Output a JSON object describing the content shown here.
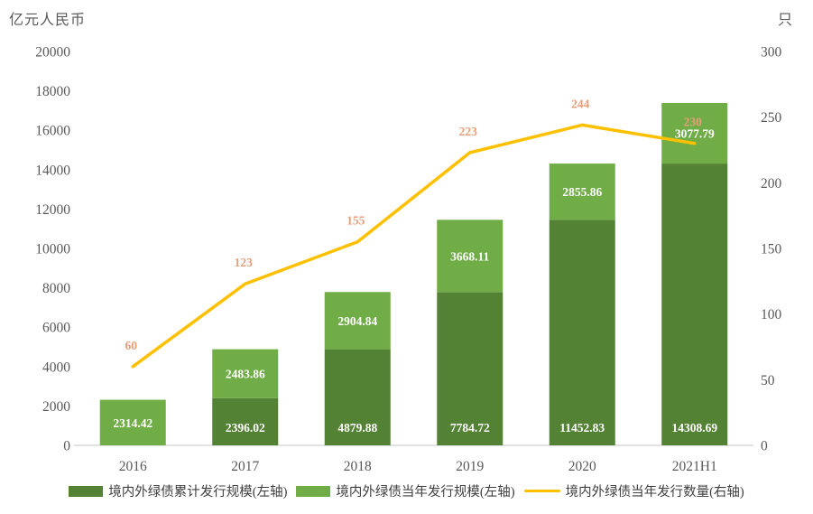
{
  "page": {
    "left_axis_title": "亿元人民币",
    "right_axis_title": "只"
  },
  "colors": {
    "dark_green": "#548235",
    "light_green": "#70AD47",
    "line_yellow": "#FFC000",
    "line_label": "#EA9E78",
    "bar_label": "#FFFFFF",
    "axis_text": "#595959",
    "axis_line": "#D9D9D9"
  },
  "legend": [
    {
      "label": "境内外绿债累计发行规模(左轴)",
      "swatch": "dark_green",
      "shape": "box"
    },
    {
      "label": "境内外绿债当年发行规模(左轴)",
      "swatch": "light_green",
      "shape": "box"
    },
    {
      "label": "境内外绿债当年发行数量(右轴)",
      "swatch": "line_yellow",
      "shape": "line"
    }
  ],
  "chart_data": {
    "type": "bar",
    "subtype": "stacked-bars-with-line-combo",
    "title": "",
    "categories": [
      "2016",
      "2017",
      "2018",
      "2019",
      "2020",
      "2021H1"
    ],
    "series": [
      {
        "name": "境内外绿债累计发行规模(左轴)",
        "type": "bar",
        "axis": "left",
        "color_key": "dark_green",
        "values": [
          0,
          2396.02,
          4879.88,
          7784.72,
          11452.83,
          14308.69
        ],
        "labels": [
          "",
          "2396.02",
          "4879.88",
          "7784.72",
          "11452.83",
          "14308.69"
        ]
      },
      {
        "name": "境内外绿债当年发行规模(左轴)",
        "type": "bar",
        "axis": "left",
        "color_key": "light_green",
        "values": [
          2314.42,
          2483.86,
          2904.84,
          3668.11,
          2855.86,
          3077.79
        ],
        "labels": [
          "2314.42",
          "2483.86",
          "2904.84",
          "3668.11",
          "2855.86",
          "3077.79"
        ]
      },
      {
        "name": "境内外绿债当年发行数量(右轴)",
        "type": "line",
        "axis": "right",
        "color_key": "line_yellow",
        "values": [
          60,
          123,
          155,
          223,
          244,
          230
        ],
        "labels": [
          "60",
          "123",
          "155",
          "223",
          "244",
          "230"
        ]
      }
    ],
    "left_axis": {
      "title": "亿元人民币",
      "min": 0,
      "max": 20000,
      "step": 2000,
      "ticks": [
        "0",
        "2000",
        "4000",
        "6000",
        "8000",
        "10000",
        "12000",
        "14000",
        "16000",
        "18000",
        "20000"
      ]
    },
    "right_axis": {
      "title": "只",
      "min": 0,
      "max": 300,
      "step": 50,
      "ticks": [
        "0",
        "50",
        "100",
        "150",
        "200",
        "250",
        "300"
      ]
    },
    "gridlines": false,
    "legend_position": "bottom"
  }
}
